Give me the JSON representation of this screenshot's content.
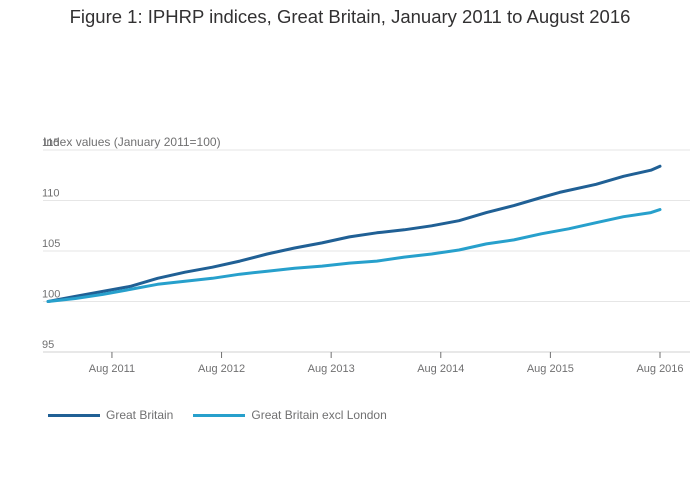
{
  "chart_data": {
    "type": "line",
    "title": "Figure 1: IPHRP indices, Great Britain, January 2011 to August 2016",
    "ylabel": "Index values (January 2011=100)",
    "xlabel": "",
    "ylim": [
      95,
      115
    ],
    "grid": true,
    "yticks": [
      95,
      100,
      105,
      110,
      115
    ],
    "ytick_labels": [
      "95",
      "100",
      "105",
      "110",
      "115"
    ],
    "x_range_months": [
      0,
      67
    ],
    "xticks": [
      {
        "month": 7,
        "label": "Aug 2011"
      },
      {
        "month": 19,
        "label": "Aug 2012"
      },
      {
        "month": 31,
        "label": "Aug 2013"
      },
      {
        "month": 43,
        "label": "Aug 2014"
      },
      {
        "month": 55,
        "label": "Aug 2015"
      },
      {
        "month": 67,
        "label": "Aug 2016"
      }
    ],
    "legend_position": "bottom-left",
    "series": [
      {
        "name": "Great Britain",
        "color": "#206095",
        "points": [
          [
            0,
            100.0
          ],
          [
            3,
            100.5
          ],
          [
            6,
            101.0
          ],
          [
            9,
            101.5
          ],
          [
            12,
            102.3
          ],
          [
            15,
            102.9
          ],
          [
            18,
            103.4
          ],
          [
            21,
            104.0
          ],
          [
            24,
            104.7
          ],
          [
            27,
            105.3
          ],
          [
            30,
            105.8
          ],
          [
            33,
            106.4
          ],
          [
            36,
            106.8
          ],
          [
            39,
            107.1
          ],
          [
            42,
            107.5
          ],
          [
            45,
            108.0
          ],
          [
            48,
            108.8
          ],
          [
            51,
            109.5
          ],
          [
            54,
            110.3
          ],
          [
            56,
            110.8
          ],
          [
            60,
            111.6
          ],
          [
            63,
            112.4
          ],
          [
            66,
            113.0
          ],
          [
            67,
            113.4
          ]
        ]
      },
      {
        "name": "Great Britain excl London",
        "color": "#27a0cc",
        "points": [
          [
            0,
            100.0
          ],
          [
            3,
            100.3
          ],
          [
            6,
            100.7
          ],
          [
            9,
            101.2
          ],
          [
            12,
            101.7
          ],
          [
            15,
            102.0
          ],
          [
            18,
            102.3
          ],
          [
            21,
            102.7
          ],
          [
            24,
            103.0
          ],
          [
            27,
            103.3
          ],
          [
            30,
            103.5
          ],
          [
            33,
            103.8
          ],
          [
            36,
            104.0
          ],
          [
            39,
            104.4
          ],
          [
            42,
            104.7
          ],
          [
            45,
            105.1
          ],
          [
            48,
            105.7
          ],
          [
            51,
            106.1
          ],
          [
            54,
            106.7
          ],
          [
            57,
            107.2
          ],
          [
            60,
            107.8
          ],
          [
            63,
            108.4
          ],
          [
            66,
            108.8
          ],
          [
            67,
            109.1
          ]
        ]
      }
    ]
  }
}
